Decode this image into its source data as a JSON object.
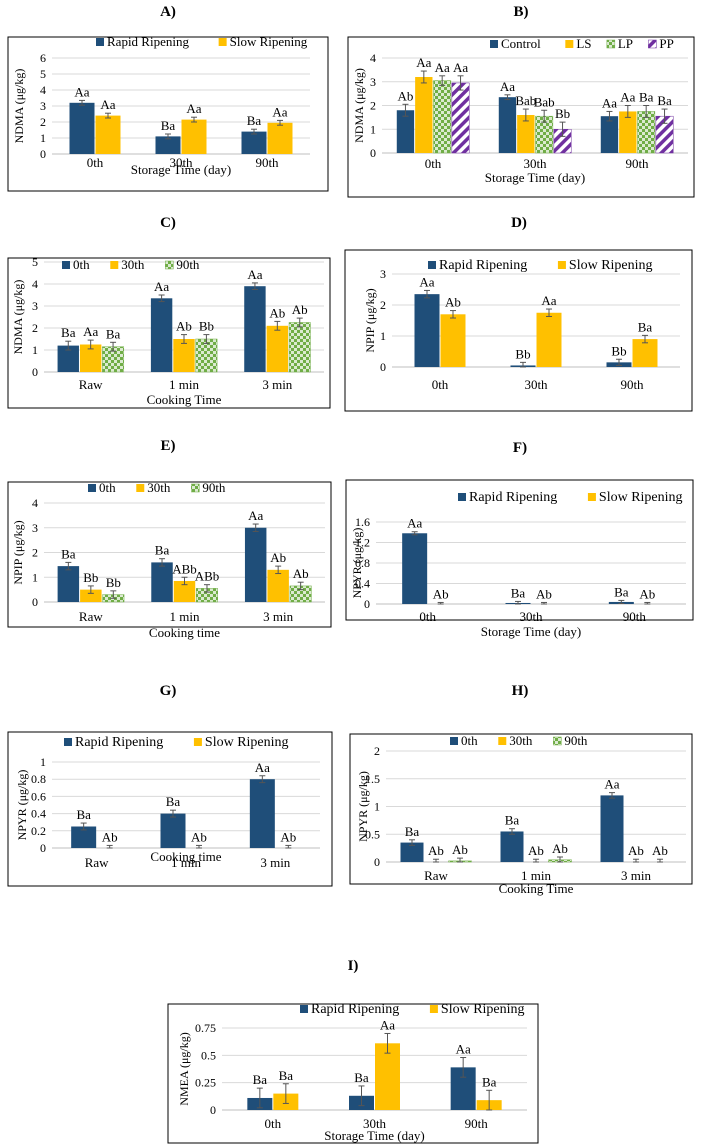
{
  "colors": {
    "dark_blue": "#1F4E79",
    "yellow": "#FFC000",
    "green": "#70AD47",
    "purple": "#7030A0",
    "grid": "#d9d9d9",
    "axis_text": "#000000"
  },
  "chart_data": [
    {
      "id": "A",
      "panel_label": "A)",
      "type": "bar",
      "ylabel": "NDMA (μg/kg)",
      "xlabel": "Storage Time (day)",
      "categories": [
        "0th",
        "30th",
        "90th"
      ],
      "ylim": [
        0,
        6
      ],
      "yticks": [
        "0",
        "1",
        "2",
        "3",
        "4",
        "5",
        "6"
      ],
      "legend": [
        "Rapid Ripening",
        "Slow Ripening"
      ],
      "series": [
        {
          "name": "Rapid Ripening",
          "color": "#1F4E79",
          "pattern": "solid",
          "values": [
            3.2,
            1.1,
            1.4
          ],
          "errors": [
            0.15,
            0.15,
            0.15
          ],
          "labels": [
            "Aa",
            "Ba",
            "Ba"
          ]
        },
        {
          "name": "Slow Ripening",
          "color": "#FFC000",
          "pattern": "solid",
          "values": [
            2.4,
            2.15,
            1.95
          ],
          "errors": [
            0.15,
            0.15,
            0.15
          ],
          "labels": [
            "Aa",
            "Aa",
            "Aa"
          ]
        }
      ]
    },
    {
      "id": "B",
      "panel_label": "B)",
      "type": "bar",
      "ylabel": "NDMA (μg/kg)",
      "xlabel": "Storage Time (day)",
      "categories": [
        "0th",
        "30th",
        "90th"
      ],
      "ylim": [
        0,
        4
      ],
      "yticks": [
        "0",
        "1",
        "2",
        "3",
        "4"
      ],
      "legend": [
        "Control",
        "LS",
        "LP",
        "PP"
      ],
      "series": [
        {
          "name": "Control",
          "color": "#1F4E79",
          "pattern": "solid",
          "values": [
            1.8,
            2.35,
            1.55
          ],
          "errors": [
            0.25,
            0.1,
            0.2
          ],
          "labels": [
            "Ab",
            "Aa",
            "Aa"
          ]
        },
        {
          "name": "LS",
          "color": "#FFC000",
          "pattern": "solid",
          "values": [
            3.2,
            1.6,
            1.75
          ],
          "errors": [
            0.25,
            0.25,
            0.25
          ],
          "labels": [
            "Aa",
            "Bab",
            "Aa"
          ]
        },
        {
          "name": "LP",
          "color": "#70AD47",
          "pattern": "checker",
          "values": [
            3.05,
            1.55,
            1.75
          ],
          "errors": [
            0.2,
            0.25,
            0.25
          ],
          "labels": [
            "Aa",
            "Bab",
            "Ba"
          ]
        },
        {
          "name": "PP",
          "color": "#7030A0",
          "pattern": "stripe",
          "values": [
            2.95,
            1.0,
            1.55
          ],
          "errors": [
            0.3,
            0.3,
            0.3
          ],
          "labels": [
            "Aa",
            "Bb",
            "Ba"
          ]
        }
      ]
    },
    {
      "id": "C",
      "panel_label": "C)",
      "type": "bar",
      "ylabel": "NDMA (μg/kg)",
      "xlabel": "Cooking Time",
      "categories": [
        "Raw",
        "1 min",
        "3 min"
      ],
      "ylim": [
        0,
        5
      ],
      "yticks": [
        "0",
        "1",
        "2",
        "3",
        "4",
        "5"
      ],
      "legend": [
        "0th",
        "30th",
        "90th"
      ],
      "series": [
        {
          "name": "0th",
          "color": "#1F4E79",
          "pattern": "solid",
          "values": [
            1.2,
            3.35,
            3.9
          ],
          "errors": [
            0.2,
            0.15,
            0.15
          ],
          "labels": [
            "Ba",
            "Aa",
            "Aa"
          ]
        },
        {
          "name": "30th",
          "color": "#FFC000",
          "pattern": "solid",
          "values": [
            1.25,
            1.5,
            2.1
          ],
          "errors": [
            0.2,
            0.2,
            0.2
          ],
          "labels": [
            "Aa",
            "Ab",
            "Ab"
          ]
        },
        {
          "name": "90th",
          "color": "#70AD47",
          "pattern": "checker",
          "values": [
            1.15,
            1.5,
            2.25
          ],
          "errors": [
            0.2,
            0.2,
            0.2
          ],
          "labels": [
            "Ba",
            "Bb",
            "Ab"
          ]
        }
      ]
    },
    {
      "id": "D",
      "panel_label": "D)",
      "type": "bar",
      "ylabel": "NPIP (μg/kg)",
      "xlabel": "",
      "categories": [
        "0th",
        "30th",
        "90th"
      ],
      "ylim": [
        0,
        3
      ],
      "yticks": [
        "0",
        "1",
        "2",
        "3"
      ],
      "legend": [
        "Rapid Ripening",
        "Slow Ripening"
      ],
      "series": [
        {
          "name": "Rapid Ripening",
          "color": "#1F4E79",
          "pattern": "solid",
          "values": [
            2.35,
            0.05,
            0.15
          ],
          "errors": [
            0.12,
            0.1,
            0.1
          ],
          "labels": [
            "Aa",
            "Bb",
            "Bb"
          ]
        },
        {
          "name": "Slow Ripening",
          "color": "#FFC000",
          "pattern": "solid",
          "values": [
            1.7,
            1.75,
            0.9
          ],
          "errors": [
            0.12,
            0.12,
            0.12
          ],
          "labels": [
            "Ab",
            "Aa",
            "Ba"
          ]
        }
      ]
    },
    {
      "id": "E",
      "panel_label": "E)",
      "type": "bar",
      "ylabel": "NPIP (μg/kg)",
      "xlabel": "Cooking time",
      "categories": [
        "Raw",
        "1 min",
        "3 min"
      ],
      "ylim": [
        0,
        4
      ],
      "yticks": [
        "0",
        "1",
        "2",
        "3",
        "4"
      ],
      "legend": [
        "0th",
        "30th",
        "90th"
      ],
      "series": [
        {
          "name": "0th",
          "color": "#1F4E79",
          "pattern": "solid",
          "values": [
            1.45,
            1.6,
            3.0
          ],
          "errors": [
            0.15,
            0.15,
            0.15
          ],
          "labels": [
            "Ba",
            "Ba",
            "Aa"
          ]
        },
        {
          "name": "30th",
          "color": "#FFC000",
          "pattern": "solid",
          "values": [
            0.5,
            0.85,
            1.3
          ],
          "errors": [
            0.15,
            0.15,
            0.15
          ],
          "labels": [
            "Bb",
            "ABb",
            "Ab"
          ]
        },
        {
          "name": "90th",
          "color": "#70AD47",
          "pattern": "checker",
          "values": [
            0.3,
            0.55,
            0.65
          ],
          "errors": [
            0.15,
            0.15,
            0.15
          ],
          "labels": [
            "Bb",
            "ABb",
            "Ab"
          ]
        }
      ]
    },
    {
      "id": "F",
      "panel_label": "F)",
      "type": "bar",
      "ylabel": "NPYR (μg/kg)",
      "xlabel": "Storage Time (day)",
      "categories": [
        "0th",
        "30th",
        "90th"
      ],
      "ylim": [
        0,
        1.6
      ],
      "yticks": [
        "0",
        "0.4",
        "0.8",
        "1.2",
        "1.6"
      ],
      "legend": [
        "Rapid Ripening",
        "Slow Ripening"
      ],
      "series": [
        {
          "name": "Rapid Ripening",
          "color": "#1F4E79",
          "pattern": "solid",
          "values": [
            1.38,
            0.02,
            0.04
          ],
          "errors": [
            0.03,
            0.03,
            0.03
          ],
          "labels": [
            "Aa",
            "Ba",
            "Ba"
          ]
        },
        {
          "name": "Slow Ripening",
          "color": "#FFC000",
          "pattern": "solid",
          "values": [
            0.0,
            0.0,
            0.0
          ],
          "errors": [
            0.03,
            0.03,
            0.03
          ],
          "labels": [
            "Ab",
            "Ab",
            "Ab"
          ]
        }
      ]
    },
    {
      "id": "G",
      "panel_label": "G)",
      "type": "bar",
      "ylabel": "NPYR (μg/kg)",
      "xlabel": "Cooking time",
      "categories": [
        "Raw",
        "1 min",
        "3 min"
      ],
      "ylim": [
        0,
        1
      ],
      "yticks": [
        "0",
        "0.2",
        "0.4",
        "0.6",
        "0.8",
        "1"
      ],
      "legend": [
        "Rapid Ripening",
        "Slow Ripening"
      ],
      "series": [
        {
          "name": "Rapid Ripening",
          "color": "#1F4E79",
          "pattern": "solid",
          "values": [
            0.25,
            0.4,
            0.8
          ],
          "errors": [
            0.04,
            0.04,
            0.04
          ],
          "labels": [
            "Ba",
            "Ba",
            "Aa"
          ]
        },
        {
          "name": "Slow Ripening",
          "color": "#FFC000",
          "pattern": "solid",
          "values": [
            0.0,
            0.0,
            0.0
          ],
          "errors": [
            0.03,
            0.03,
            0.03
          ],
          "labels": [
            "Ab",
            "Ab",
            "Ab"
          ]
        }
      ]
    },
    {
      "id": "H",
      "panel_label": "H)",
      "type": "bar",
      "ylabel": "NPYR (μg/kg)",
      "xlabel": "Cooking Time",
      "categories": [
        "Raw",
        "1 min",
        "3 min"
      ],
      "ylim": [
        0,
        2
      ],
      "yticks": [
        "0",
        "0.5",
        "1",
        "1.5",
        "2"
      ],
      "legend": [
        "0th",
        "30th",
        "90th"
      ],
      "series": [
        {
          "name": "0th",
          "color": "#1F4E79",
          "pattern": "solid",
          "values": [
            0.35,
            0.55,
            1.2
          ],
          "errors": [
            0.05,
            0.05,
            0.05
          ],
          "labels": [
            "Ba",
            "Ba",
            "Aa"
          ]
        },
        {
          "name": "30th",
          "color": "#FFC000",
          "pattern": "solid",
          "values": [
            0.0,
            0.0,
            0.0
          ],
          "errors": [
            0.05,
            0.05,
            0.05
          ],
          "labels": [
            "Ab",
            "Ab",
            "Ab"
          ]
        },
        {
          "name": "90th",
          "color": "#70AD47",
          "pattern": "checker",
          "values": [
            0.02,
            0.04,
            0.0
          ],
          "errors": [
            0.05,
            0.05,
            0.05
          ],
          "labels": [
            "Ab",
            "Ab",
            "Ab"
          ]
        }
      ]
    },
    {
      "id": "I",
      "panel_label": "I)",
      "type": "bar",
      "ylabel": "NMEA (μg/kg)",
      "xlabel": "Storage Time (day)",
      "categories": [
        "0th",
        "30th",
        "90th"
      ],
      "ylim": [
        0,
        0.75
      ],
      "yticks": [
        "0",
        "0.25",
        "0.5",
        "0.75"
      ],
      "legend": [
        "Rapid Ripening",
        "Slow Ripening"
      ],
      "series": [
        {
          "name": "Rapid Ripening",
          "color": "#1F4E79",
          "pattern": "solid",
          "values": [
            0.11,
            0.13,
            0.39
          ],
          "errors": [
            0.09,
            0.09,
            0.09
          ],
          "labels": [
            "Ba",
            "Ba",
            "Aa"
          ]
        },
        {
          "name": "Slow Ripening",
          "color": "#FFC000",
          "pattern": "solid",
          "values": [
            0.15,
            0.61,
            0.09
          ],
          "errors": [
            0.09,
            0.09,
            0.09
          ],
          "labels": [
            "Ba",
            "Aa",
            "Ba"
          ]
        }
      ]
    }
  ]
}
